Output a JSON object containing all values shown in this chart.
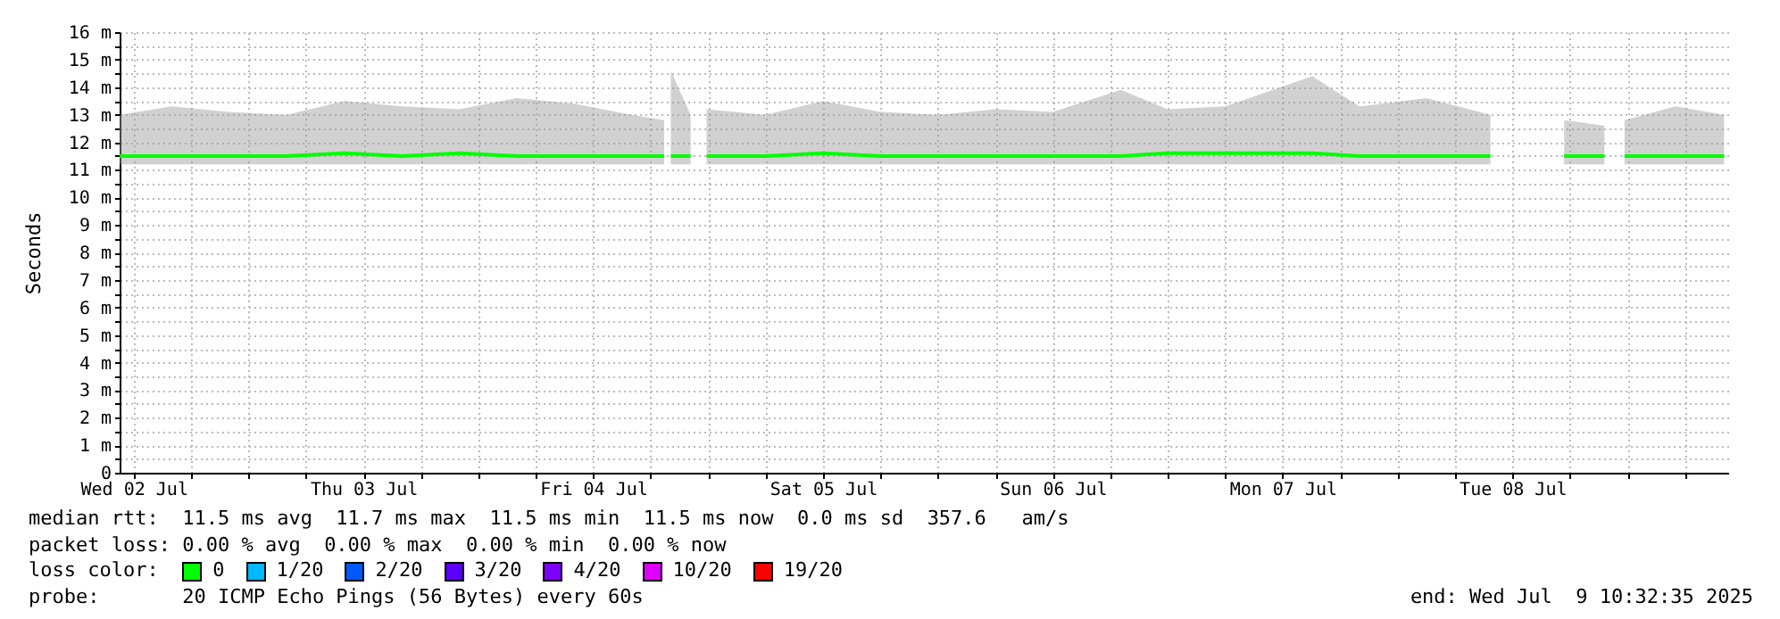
{
  "chart_data": {
    "type": "line",
    "ylabel": "Seconds",
    "legend_title": "loss color:",
    "legend": "bottom",
    "grid": true,
    "xlim": [
      "2025-07-02T10:32",
      "2025-07-09T10:32"
    ],
    "ylim": [
      0,
      16
    ],
    "xticks": [
      {
        "value": "2025-07-02T12:00",
        "label": "Wed 02 Jul"
      },
      {
        "value": "2025-07-02T18:00",
        "label": null
      },
      {
        "value": "2025-07-03T00:00",
        "label": null
      },
      {
        "value": "2025-07-03T06:00",
        "label": null
      },
      {
        "value": "2025-07-03T12:00",
        "label": "Thu 03 Jul"
      },
      {
        "value": "2025-07-03T18:00",
        "label": null
      },
      {
        "value": "2025-07-04T00:00",
        "label": null
      },
      {
        "value": "2025-07-04T06:00",
        "label": null
      },
      {
        "value": "2025-07-04T12:00",
        "label": "Fri 04 Jul"
      },
      {
        "value": "2025-07-04T18:00",
        "label": null
      },
      {
        "value": "2025-07-05T00:00",
        "label": null
      },
      {
        "value": "2025-07-05T06:00",
        "label": null
      },
      {
        "value": "2025-07-05T12:00",
        "label": "Sat 05 Jul"
      },
      {
        "value": "2025-07-05T18:00",
        "label": null
      },
      {
        "value": "2025-07-06T00:00",
        "label": null
      },
      {
        "value": "2025-07-06T06:00",
        "label": null
      },
      {
        "value": "2025-07-06T12:00",
        "label": "Sun 06 Jul"
      },
      {
        "value": "2025-07-06T18:00",
        "label": null
      },
      {
        "value": "2025-07-07T00:00",
        "label": null
      },
      {
        "value": "2025-07-07T06:00",
        "label": null
      },
      {
        "value": "2025-07-07T12:00",
        "label": "Mon 07 Jul"
      },
      {
        "value": "2025-07-07T18:00",
        "label": null
      },
      {
        "value": "2025-07-08T00:00",
        "label": null
      },
      {
        "value": "2025-07-08T06:00",
        "label": null
      },
      {
        "value": "2025-07-08T12:00",
        "label": "Tue 08 Jul"
      },
      {
        "value": "2025-07-08T18:00",
        "label": null
      },
      {
        "value": "2025-07-09T00:00",
        "label": null
      },
      {
        "value": "2025-07-09T06:00",
        "label": null
      }
    ],
    "yticks": [
      {
        "value": 0,
        "label": "0"
      },
      {
        "value": 0.5,
        "label": null
      },
      {
        "value": 1,
        "label": "1 m"
      },
      {
        "value": 1.5,
        "label": null
      },
      {
        "value": 2,
        "label": "2 m"
      },
      {
        "value": 2.5,
        "label": null
      },
      {
        "value": 3,
        "label": "3 m"
      },
      {
        "value": 3.5,
        "label": null
      },
      {
        "value": 4,
        "label": "4 m"
      },
      {
        "value": 4.5,
        "label": null
      },
      {
        "value": 5,
        "label": "5 m"
      },
      {
        "value": 5.5,
        "label": null
      },
      {
        "value": 6,
        "label": "6 m"
      },
      {
        "value": 6.5,
        "label": null
      },
      {
        "value": 7,
        "label": "7 m"
      },
      {
        "value": 7.5,
        "label": null
      },
      {
        "value": 8,
        "label": "8 m"
      },
      {
        "value": 8.5,
        "label": null
      },
      {
        "value": 9,
        "label": "9 m"
      },
      {
        "value": 9.5,
        "label": null
      },
      {
        "value": 10,
        "label": "10 m"
      },
      {
        "value": 10.5,
        "label": null
      },
      {
        "value": 11,
        "label": "11 m"
      },
      {
        "value": 11.5,
        "label": null
      },
      {
        "value": 12,
        "label": "12 m"
      },
      {
        "value": 12.5,
        "label": null
      },
      {
        "value": 13,
        "label": "13 m"
      },
      {
        "value": 13.5,
        "label": null
      },
      {
        "value": 14,
        "label": "14 m"
      },
      {
        "value": 14.5,
        "label": null
      },
      {
        "value": 15,
        "label": "15 m"
      },
      {
        "value": 15.5,
        "label": null
      },
      {
        "value": 16,
        "label": "16 m"
      }
    ],
    "x": [
      "2025-07-02T10:32",
      "2025-07-02T16:00",
      "2025-07-02T22:00",
      "2025-07-03T04:00",
      "2025-07-03T10:00",
      "2025-07-03T16:00",
      "2025-07-03T22:00",
      "2025-07-04T04:00",
      "2025-07-04T10:00",
      "2025-07-04T16:00",
      "2025-07-04T19:24",
      "2025-07-04T19:45",
      "2025-07-04T20:06",
      "2025-07-04T22:10",
      "2025-07-04T23:00",
      "2025-07-04T23:50",
      "2025-07-05T06:00",
      "2025-07-05T12:00",
      "2025-07-05T18:00",
      "2025-07-06T00:00",
      "2025-07-06T06:00",
      "2025-07-06T12:00",
      "2025-07-06T19:06",
      "2025-07-07T00:00",
      "2025-07-07T06:00",
      "2025-07-07T15:06",
      "2025-07-07T20:00",
      "2025-07-08T03:00",
      "2025-07-08T09:42",
      "2025-07-08T13:30",
      "2025-07-08T17:24",
      "2025-07-08T21:36",
      "2025-07-08T22:40",
      "2025-07-08T23:42",
      "2025-07-09T05:00",
      "2025-07-09T10:06"
    ],
    "series": [
      {
        "name": "0",
        "color": "#00ff00",
        "values": [
          11.5,
          11.5,
          11.5,
          11.5,
          11.6,
          11.5,
          11.6,
          11.5,
          11.5,
          11.5,
          11.5,
          null,
          11.5,
          11.5,
          null,
          11.5,
          11.5,
          11.6,
          11.5,
          11.5,
          11.5,
          11.5,
          11.5,
          11.6,
          11.6,
          11.6,
          11.5,
          11.5,
          11.5,
          null,
          11.5,
          11.5,
          null,
          11.5,
          11.5,
          11.5
        ],
        "lower": [
          11.2,
          11.2,
          11.2,
          11.2,
          11.2,
          11.2,
          11.2,
          11.2,
          11.2,
          11.2,
          11.2,
          null,
          11.2,
          11.2,
          null,
          11.2,
          11.2,
          11.2,
          11.2,
          11.2,
          11.2,
          11.2,
          11.2,
          11.2,
          11.2,
          11.2,
          11.2,
          11.2,
          11.2,
          null,
          11.2,
          11.2,
          null,
          11.2,
          11.2,
          11.2
        ],
        "upper": [
          13.0,
          13.3,
          13.1,
          13.0,
          13.5,
          13.3,
          13.2,
          13.6,
          13.4,
          13.0,
          12.8,
          null,
          14.6,
          13.0,
          null,
          13.2,
          13.0,
          13.5,
          13.1,
          13.0,
          13.2,
          13.1,
          13.9,
          13.2,
          13.3,
          14.4,
          13.3,
          13.6,
          13.0,
          null,
          12.8,
          12.6,
          null,
          12.8,
          13.3,
          13.0
        ]
      },
      {
        "name": "1/20",
        "color": "#00b8ff",
        "values": [
          null,
          null,
          null,
          null,
          null,
          null,
          null,
          null,
          null,
          null,
          null,
          null,
          null,
          null,
          null,
          null,
          null,
          null,
          null,
          null,
          null,
          null,
          null,
          null,
          null,
          null,
          null,
          null,
          null,
          null,
          null,
          null,
          null,
          null,
          null,
          null
        ]
      },
      {
        "name": "2/20",
        "color": "#0059ff",
        "values": [
          null,
          null,
          null,
          null,
          null,
          null,
          null,
          null,
          null,
          null,
          null,
          null,
          null,
          null,
          null,
          null,
          null,
          null,
          null,
          null,
          null,
          null,
          null,
          null,
          null,
          null,
          null,
          null,
          null,
          null,
          null,
          null,
          null,
          null,
          null,
          null
        ]
      },
      {
        "name": "3/20",
        "color": "#5e00ff",
        "values": [
          null,
          null,
          null,
          null,
          null,
          null,
          null,
          null,
          null,
          null,
          null,
          null,
          null,
          null,
          null,
          null,
          null,
          null,
          null,
          null,
          null,
          null,
          null,
          null,
          null,
          null,
          null,
          null,
          null,
          null,
          null,
          null,
          null,
          null,
          null,
          null
        ]
      },
      {
        "name": "4/20",
        "color": "#7e00ff",
        "values": [
          null,
          null,
          null,
          null,
          null,
          null,
          null,
          null,
          null,
          null,
          null,
          null,
          null,
          null,
          null,
          null,
          null,
          null,
          null,
          null,
          null,
          null,
          null,
          null,
          null,
          null,
          null,
          null,
          null,
          null,
          null,
          null,
          null,
          null,
          null,
          null
        ]
      },
      {
        "name": "10/20",
        "color": "#dd00ff",
        "values": [
          null,
          null,
          null,
          null,
          null,
          null,
          null,
          null,
          null,
          null,
          null,
          null,
          null,
          null,
          null,
          null,
          null,
          null,
          null,
          null,
          null,
          null,
          null,
          null,
          null,
          null,
          null,
          null,
          null,
          null,
          null,
          null,
          null,
          null,
          null,
          null
        ]
      },
      {
        "name": "19/20",
        "color": "#ff0000",
        "values": [
          null,
          null,
          null,
          null,
          null,
          null,
          null,
          null,
          null,
          null,
          null,
          null,
          null,
          null,
          null,
          null,
          null,
          null,
          null,
          null,
          null,
          null,
          null,
          null,
          null,
          null,
          null,
          null,
          null,
          null,
          null,
          null,
          null,
          null,
          null,
          null
        ]
      }
    ],
    "annotations": [
      "median rtt:  11.5 ms avg  11.7 ms max  11.5 ms min  11.5 ms now  0.0 ms sd  357.6   am/s",
      "packet loss: 0.00 % avg  0.00 % max  0.00 % min  0.00 % now",
      "probe:       20 ICMP Echo Pings (56 Bytes) every 60s",
      "end: Wed Jul  9 10:32:35 2025"
    ]
  }
}
